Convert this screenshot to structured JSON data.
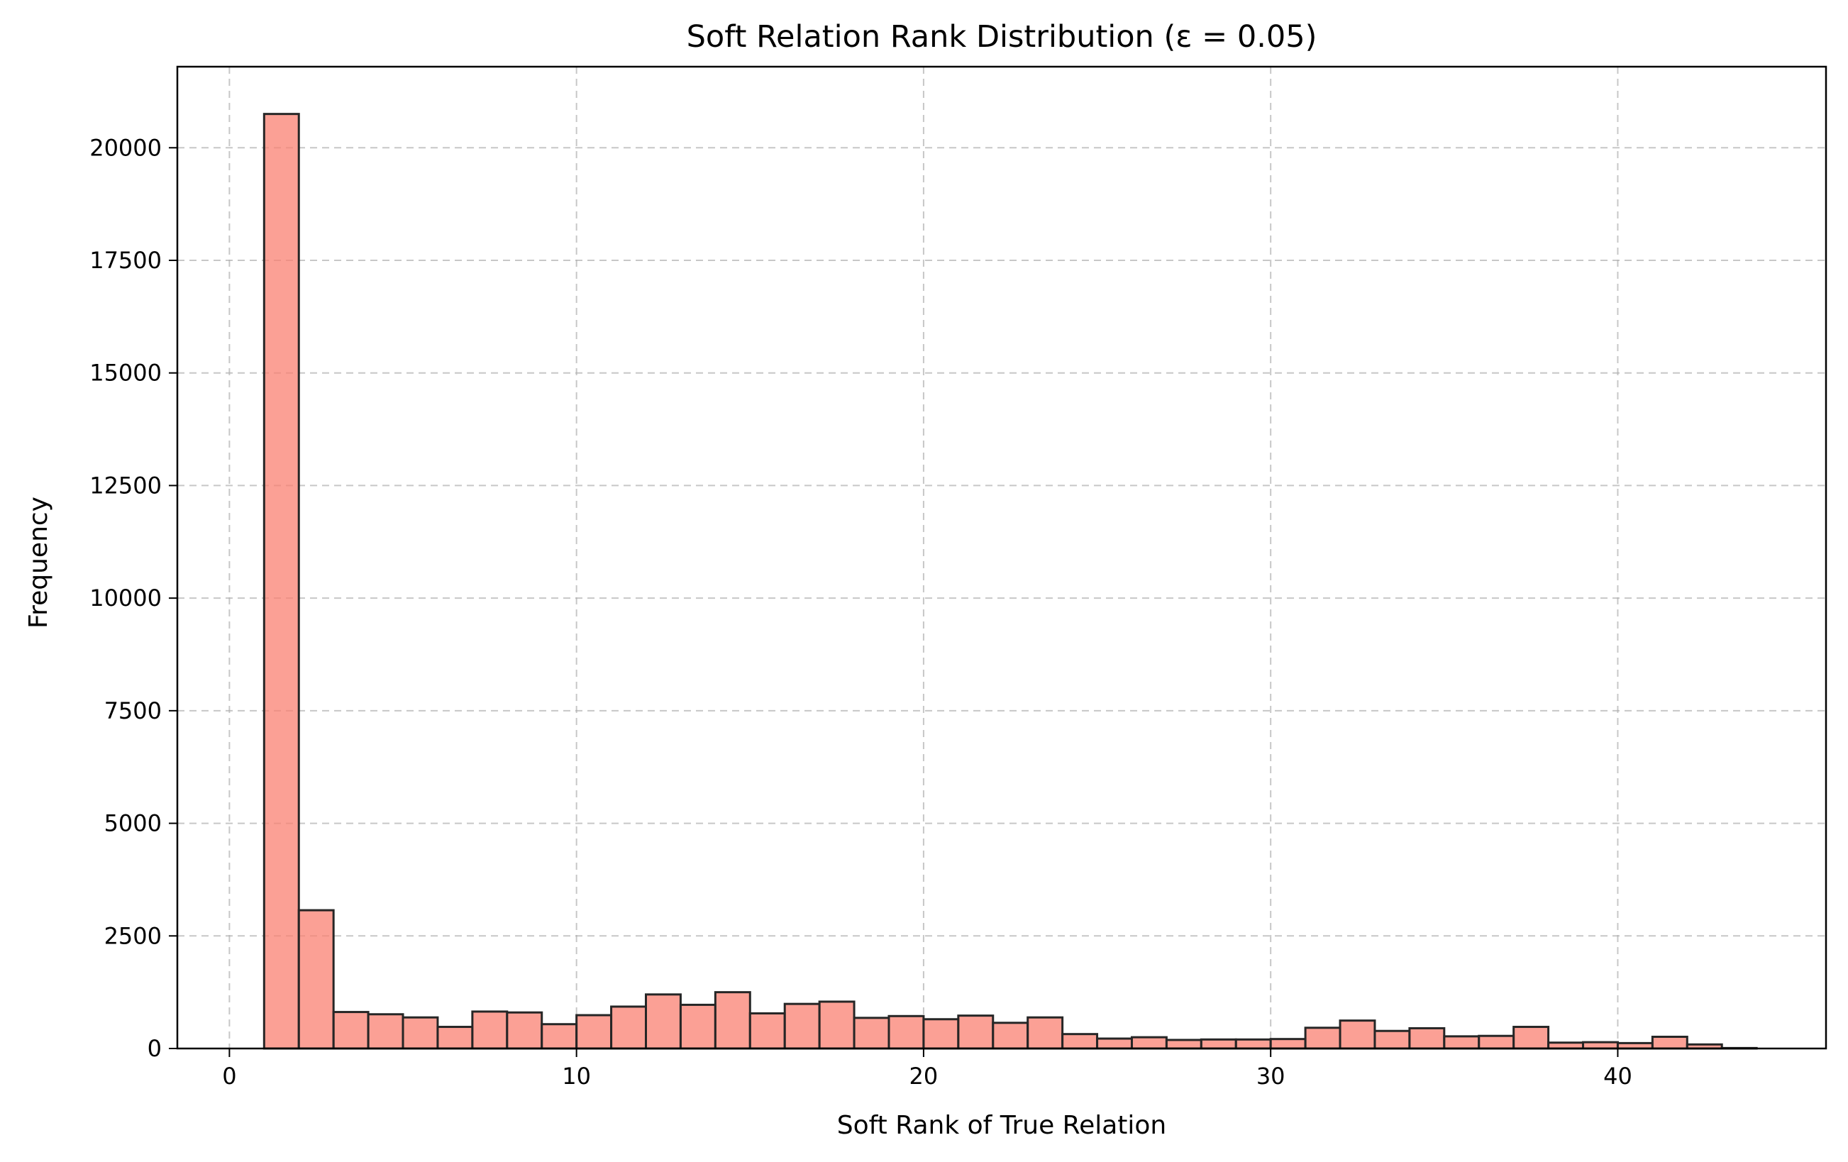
{
  "chart_data": {
    "type": "bar",
    "title": "Soft Relation Rank Distribution (ε = 0.05)",
    "xlabel": "Soft Rank of True Relation",
    "ylabel": "Frequency",
    "xlim": [
      -1.5,
      46
    ],
    "ylim": [
      0,
      21800
    ],
    "xticks": [
      0,
      10,
      20,
      30,
      40
    ],
    "yticks": [
      0,
      2500,
      5000,
      7500,
      10000,
      12500,
      15000,
      17500,
      20000
    ],
    "grid": true,
    "bar_color": "#fa8072",
    "bar_alpha": 0.75,
    "edge_color": "#262626",
    "bins": {
      "start": 1,
      "width": 1,
      "values": [
        20750,
        3070,
        810,
        760,
        690,
        480,
        820,
        800,
        540,
        740,
        930,
        1200,
        970,
        1250,
        780,
        990,
        1040,
        680,
        720,
        650,
        730,
        570,
        690,
        320,
        220,
        250,
        190,
        200,
        200,
        210,
        460,
        620,
        390,
        450,
        270,
        280,
        480,
        130,
        140,
        120,
        260,
        90,
        10
      ]
    }
  }
}
